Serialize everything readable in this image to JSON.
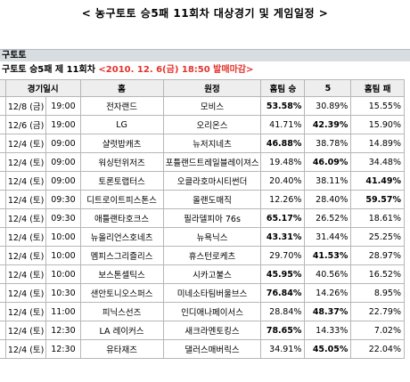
{
  "page_title": "< 농구토토 승5패 11회차 대상경기 및 게임일정 >",
  "section_label": "구토토",
  "round_info": "구토토 승5패 제 11회차",
  "deadline": "<2010. 12. 6(금) 18:50 발매마감>",
  "columns": [
    "",
    "경기일시",
    "홈",
    "원정",
    "홈팀 승",
    "5",
    "홈팀 패"
  ],
  "rows": [
    {
      "date": "12/8 (금)",
      "time": "19:00",
      "home": "전자랜드",
      "away": "모비스",
      "win": "53.58%",
      "five": "30.89%",
      "lose": "15.55%",
      "bold": "win"
    },
    {
      "date": "12/6 (금)",
      "time": "19:00",
      "home": "LG",
      "away": "오리온스",
      "win": "41.71%",
      "five": "42.39%",
      "lose": "15.90%",
      "bold": "five"
    },
    {
      "date": "12/4 (토)",
      "time": "09:00",
      "home": "샬럿밥캐츠",
      "away": "뉴저지네츠",
      "win": "46.88%",
      "five": "38.78%",
      "lose": "14.89%",
      "bold": "win"
    },
    {
      "date": "12/4 (토)",
      "time": "09:00",
      "home": "워싱턴위저즈",
      "away": "포틀랜드트레일블레이져스",
      "win": "19.48%",
      "five": "46.09%",
      "lose": "34.48%",
      "bold": "five"
    },
    {
      "date": "12/4 (토)",
      "time": "09:00",
      "home": "토론토랩터스",
      "away": "오클라호마시티썬더",
      "win": "20.40%",
      "five": "38.11%",
      "lose": "41.49%",
      "bold": "lose"
    },
    {
      "date": "12/4 (토)",
      "time": "09:30",
      "home": "디트로이트피스톤스",
      "away": "올랜도매직",
      "win": "12.26%",
      "five": "28.40%",
      "lose": "59.57%",
      "bold": "lose"
    },
    {
      "date": "12/4 (토)",
      "time": "09:30",
      "home": "애틀랜타호크스",
      "away": "필라델피아 76s",
      "win": "65.17%",
      "five": "26.52%",
      "lose": "18.61%",
      "bold": "win"
    },
    {
      "date": "12/4 (토)",
      "time": "10:00",
      "home": "뉴올리언스호네츠",
      "away": "뉴욕닉스",
      "win": "43.31%",
      "five": "31.44%",
      "lose": "25.25%",
      "bold": "win"
    },
    {
      "date": "12/4 (토)",
      "time": "10:00",
      "home": "멤피스그리즐리스",
      "away": "휴스턴로케츠",
      "win": "29.70%",
      "five": "41.53%",
      "lose": "28.97%",
      "bold": "five"
    },
    {
      "date": "12/4 (토)",
      "time": "10:00",
      "home": "보스톤셀틱스",
      "away": "시카고불스",
      "win": "45.95%",
      "five": "40.56%",
      "lose": "16.52%",
      "bold": "win"
    },
    {
      "date": "12/4 (토)",
      "time": "10:30",
      "home": "샌안토니오스퍼스",
      "away": "미네소타팀버울브스",
      "win": "76.84%",
      "five": "14.26%",
      "lose": "8.95%",
      "bold": "win"
    },
    {
      "date": "12/4 (토)",
      "time": "11:00",
      "home": "피닉스선즈",
      "away": "인디애나페이서스",
      "win": "28.84%",
      "five": "48.37%",
      "lose": "22.79%",
      "bold": "five"
    },
    {
      "date": "12/4 (토)",
      "time": "12:30",
      "home": "LA 레이커스",
      "away": "새크라멘토킹스",
      "win": "78.65%",
      "five": "14.33%",
      "lose": "7.02%",
      "bold": "win"
    },
    {
      "date": "12/4 (토)",
      "time": "12:30",
      "home": "유타재즈",
      "away": "댈러스매버릭스",
      "win": "34.91%",
      "five": "45.05%",
      "lose": "22.04%",
      "bold": "five"
    }
  ]
}
